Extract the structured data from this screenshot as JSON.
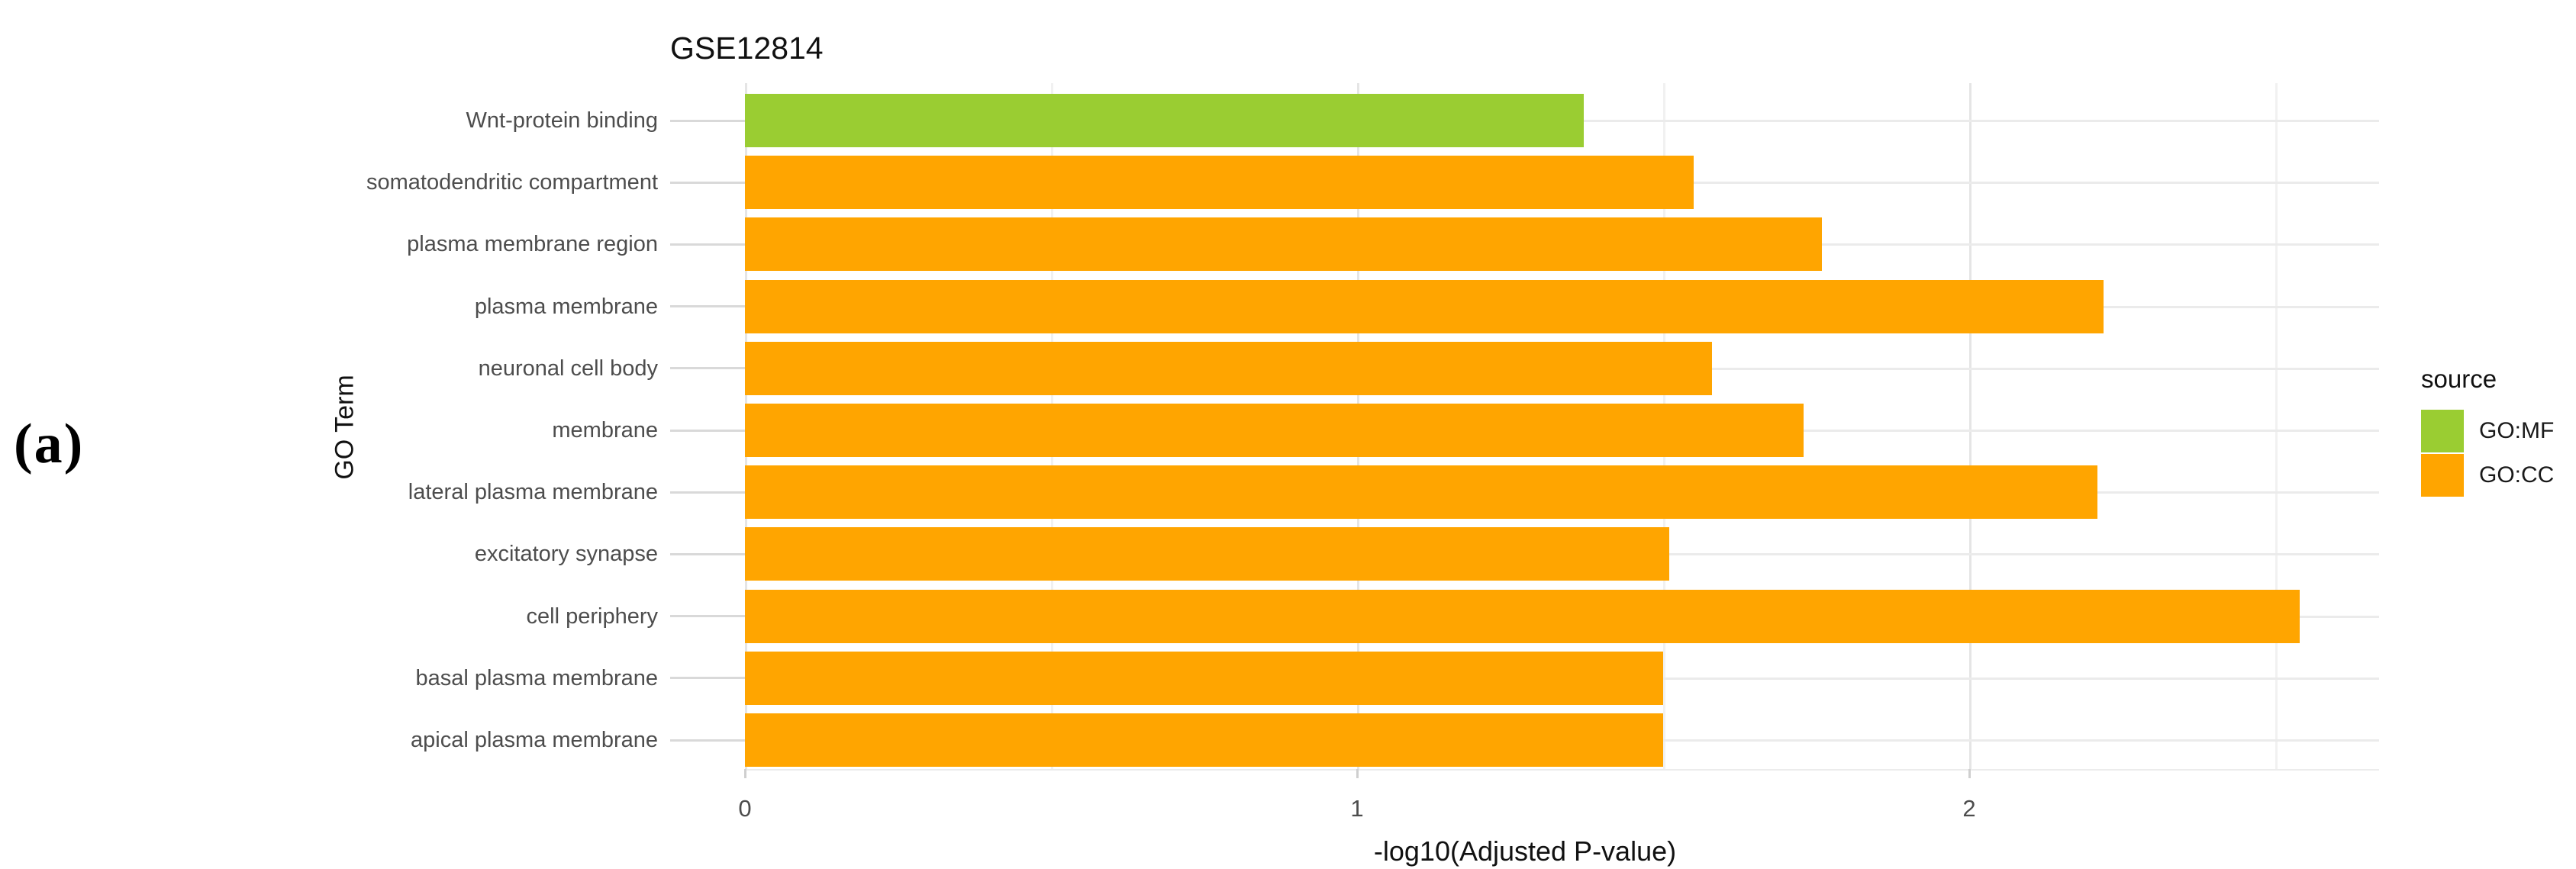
{
  "figure_label": "(a)",
  "colors": {
    "go_mf_green": "#9ACD32",
    "go_cc_orange": "#FFA500",
    "grid_major": "#E5E5E5",
    "grid_minor": "#F1F1F1",
    "grid_horizontal": "#EBEBEB",
    "tick_line": "#D9D9D9",
    "axis_text": "#4D4D4D",
    "title_text": "#111111"
  },
  "chart_data": {
    "type": "bar",
    "orientation": "horizontal",
    "title": "GSE12814",
    "xlabel": "-log10(Adjusted P-value)",
    "ylabel": "GO Term",
    "xlim": [
      0,
      2.67
    ],
    "x_major_ticks": [
      0,
      1,
      2
    ],
    "x_minor_ticks": [
      0.5,
      1.5,
      2.5
    ],
    "grid": true,
    "legend_position": "right",
    "legend_title": "source",
    "legend_entries": [
      {
        "label": "GO:MF",
        "color_key": "go_mf_green"
      },
      {
        "label": "GO:CC",
        "color_key": "go_cc_orange"
      }
    ],
    "categories": [
      "Wnt-protein binding",
      "somatodendritic compartment",
      "plasma membrane region",
      "plasma membrane",
      "neuronal cell body",
      "membrane",
      "lateral plasma membrane",
      "excitatory synapse",
      "cell periphery",
      "basal plasma membrane",
      "apical plasma membrane"
    ],
    "bars": [
      {
        "category": "Wnt-protein binding",
        "value": 1.37,
        "source": "GO:MF"
      },
      {
        "category": "somatodendritic compartment",
        "value": 1.55,
        "source": "GO:CC"
      },
      {
        "category": "plasma membrane region",
        "value": 1.76,
        "source": "GO:CC"
      },
      {
        "category": "plasma membrane",
        "value": 2.22,
        "source": "GO:CC"
      },
      {
        "category": "neuronal cell body",
        "value": 1.58,
        "source": "GO:CC"
      },
      {
        "category": "membrane",
        "value": 1.73,
        "source": "GO:CC"
      },
      {
        "category": "lateral plasma membrane",
        "value": 2.21,
        "source": "GO:CC"
      },
      {
        "category": "excitatory synapse",
        "value": 1.51,
        "source": "GO:CC"
      },
      {
        "category": "cell periphery",
        "value": 2.54,
        "source": "GO:CC"
      },
      {
        "category": "basal plasma membrane",
        "value": 1.5,
        "source": "GO:CC"
      },
      {
        "category": "apical plasma membrane",
        "value": 1.5,
        "source": "GO:CC"
      }
    ]
  }
}
